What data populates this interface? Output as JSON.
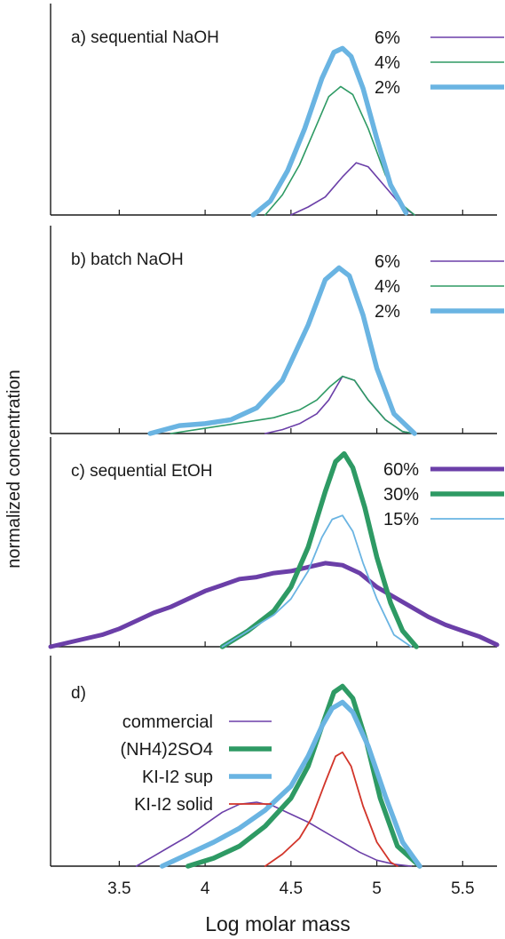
{
  "figure": {
    "xlabel": "Log molar mass",
    "ylabel": "normalized concentration"
  },
  "colors": {
    "purple": "#6b3fa8",
    "green": "#2e9a64",
    "lightblue": "#6ab4e2",
    "red": "#d2352a",
    "axis": "#1a1a1a"
  },
  "chart_data": [
    {
      "type": "line",
      "title": "a) sequential NaOH",
      "xlim": [
        3.1,
        5.7
      ],
      "xticks": [
        3.5,
        4,
        4.5,
        5,
        5.5
      ],
      "ylim": [
        0,
        1
      ],
      "series": [
        {
          "name": "6%",
          "color": "#6b3fa8",
          "width": 1.6,
          "x": [
            4.5,
            4.6,
            4.7,
            4.8,
            4.88,
            4.95,
            5.05,
            5.15,
            5.22
          ],
          "y": [
            0.0,
            0.04,
            0.09,
            0.19,
            0.26,
            0.24,
            0.14,
            0.04,
            0.0
          ]
        },
        {
          "name": "4%",
          "color": "#2e9a64",
          "width": 1.6,
          "x": [
            4.35,
            4.45,
            4.55,
            4.65,
            4.72,
            4.79,
            4.86,
            4.95,
            5.05,
            5.15,
            5.22
          ],
          "y": [
            0.0,
            0.1,
            0.25,
            0.45,
            0.59,
            0.64,
            0.6,
            0.43,
            0.2,
            0.05,
            0.0
          ]
        },
        {
          "name": "2%",
          "color": "#6ab4e2",
          "width": 5.5,
          "x": [
            4.28,
            4.38,
            4.48,
            4.58,
            4.68,
            4.75,
            4.8,
            4.85,
            4.92,
            5.0,
            5.08,
            5.17
          ],
          "y": [
            0.0,
            0.07,
            0.22,
            0.43,
            0.68,
            0.81,
            0.83,
            0.79,
            0.63,
            0.38,
            0.15,
            0.01
          ]
        }
      ]
    },
    {
      "type": "line",
      "title": "b) batch NaOH",
      "xlim": [
        3.1,
        5.7
      ],
      "xticks": [
        3.5,
        4,
        4.5,
        5,
        5.5
      ],
      "ylim": [
        0,
        1
      ],
      "series": [
        {
          "name": "6%",
          "color": "#6b3fa8",
          "width": 1.6,
          "x": [
            4.35,
            4.45,
            4.55,
            4.65,
            4.72,
            4.8,
            4.87,
            4.95,
            5.05,
            5.15,
            5.22
          ],
          "y": [
            0.0,
            0.02,
            0.05,
            0.1,
            0.17,
            0.29,
            0.27,
            0.17,
            0.07,
            0.01,
            0.0
          ]
        },
        {
          "name": "4%",
          "color": "#2e9a64",
          "width": 1.6,
          "x": [
            3.8,
            3.95,
            4.1,
            4.25,
            4.4,
            4.55,
            4.65,
            4.73,
            4.8,
            4.87,
            4.95,
            5.05,
            5.15,
            5.22
          ],
          "y": [
            0.0,
            0.02,
            0.04,
            0.06,
            0.08,
            0.12,
            0.17,
            0.24,
            0.29,
            0.27,
            0.17,
            0.07,
            0.01,
            0.0
          ]
        },
        {
          "name": "2%",
          "color": "#6ab4e2",
          "width": 5.5,
          "x": [
            3.68,
            3.85,
            4.0,
            4.15,
            4.3,
            4.45,
            4.6,
            4.7,
            4.78,
            4.84,
            4.92,
            5.0,
            5.1,
            5.22
          ],
          "y": [
            0.0,
            0.04,
            0.05,
            0.07,
            0.13,
            0.27,
            0.55,
            0.78,
            0.84,
            0.8,
            0.6,
            0.33,
            0.1,
            0.0
          ]
        }
      ]
    },
    {
      "type": "line",
      "title": "c) sequential EtOH",
      "xlim": [
        3.1,
        5.7
      ],
      "xticks": [
        3.5,
        4,
        4.5,
        5,
        5.5
      ],
      "ylim": [
        0,
        1
      ],
      "series": [
        {
          "name": "60%",
          "color": "#6b3fa8",
          "width": 5.0,
          "x": [
            3.1,
            3.2,
            3.3,
            3.4,
            3.5,
            3.6,
            3.7,
            3.8,
            3.9,
            4.0,
            4.1,
            4.2,
            4.3,
            4.4,
            4.5,
            4.6,
            4.7,
            4.8,
            4.9,
            5.0,
            5.1,
            5.2,
            5.3,
            5.4,
            5.5,
            5.6,
            5.7
          ],
          "y": [
            0.0,
            0.02,
            0.04,
            0.06,
            0.09,
            0.13,
            0.17,
            0.2,
            0.24,
            0.28,
            0.31,
            0.34,
            0.35,
            0.37,
            0.38,
            0.4,
            0.42,
            0.41,
            0.37,
            0.3,
            0.25,
            0.2,
            0.15,
            0.11,
            0.08,
            0.05,
            0.01
          ]
        },
        {
          "name": "30%",
          "color": "#2e9a64",
          "width": 5.5,
          "x": [
            4.1,
            4.25,
            4.4,
            4.5,
            4.6,
            4.7,
            4.76,
            4.81,
            4.86,
            4.93,
            5.0,
            5.08,
            5.15,
            5.23
          ],
          "y": [
            0.0,
            0.08,
            0.18,
            0.3,
            0.5,
            0.78,
            0.93,
            0.97,
            0.9,
            0.7,
            0.45,
            0.22,
            0.08,
            0.0
          ]
        },
        {
          "name": "15%",
          "color": "#6ab4e2",
          "width": 1.8,
          "x": [
            4.1,
            4.25,
            4.4,
            4.5,
            4.6,
            4.68,
            4.74,
            4.8,
            4.86,
            4.92,
            5.0,
            5.1,
            5.2
          ],
          "y": [
            0.0,
            0.08,
            0.16,
            0.24,
            0.38,
            0.55,
            0.64,
            0.66,
            0.58,
            0.42,
            0.24,
            0.06,
            0.0
          ]
        }
      ]
    },
    {
      "type": "line",
      "title": "d)",
      "xlim": [
        3.1,
        5.7
      ],
      "xticks": [
        3.5,
        4,
        4.5,
        5,
        5.5
      ],
      "ylim": [
        0,
        1
      ],
      "series": [
        {
          "name": "commercial",
          "color": "#6b3fa8",
          "width": 1.6,
          "x": [
            3.6,
            3.7,
            3.8,
            3.9,
            4.0,
            4.1,
            4.2,
            4.3,
            4.4,
            4.5,
            4.6,
            4.7,
            4.8,
            4.9,
            5.0,
            5.1,
            5.2
          ],
          "y": [
            0.0,
            0.05,
            0.1,
            0.15,
            0.21,
            0.27,
            0.31,
            0.32,
            0.3,
            0.26,
            0.22,
            0.17,
            0.12,
            0.07,
            0.03,
            0.01,
            0.0
          ]
        },
        {
          "name": "(NH4)2SO4",
          "color": "#2e9a64",
          "width": 5.5,
          "x": [
            3.9,
            4.05,
            4.2,
            4.35,
            4.5,
            4.6,
            4.68,
            4.75,
            4.8,
            4.86,
            4.94,
            5.02,
            5.12,
            5.25
          ],
          "y": [
            0.0,
            0.04,
            0.1,
            0.2,
            0.34,
            0.5,
            0.7,
            0.87,
            0.9,
            0.84,
            0.62,
            0.34,
            0.1,
            0.0
          ]
        },
        {
          "name": "KI-I2 sup",
          "color": "#6ab4e2",
          "width": 5.5,
          "x": [
            3.75,
            3.9,
            4.05,
            4.2,
            4.35,
            4.5,
            4.6,
            4.68,
            4.74,
            4.8,
            4.86,
            4.95,
            5.05,
            5.15,
            5.25
          ],
          "y": [
            0.0,
            0.06,
            0.12,
            0.19,
            0.28,
            0.4,
            0.55,
            0.7,
            0.79,
            0.82,
            0.77,
            0.6,
            0.35,
            0.12,
            0.0
          ]
        },
        {
          "name": "KI-I2 solid",
          "color": "#d2352a",
          "width": 1.8,
          "x": [
            4.35,
            4.45,
            4.55,
            4.62,
            4.7,
            4.76,
            4.8,
            4.85,
            4.92,
            5.0,
            5.08,
            5.12
          ],
          "y": [
            0.0,
            0.06,
            0.14,
            0.24,
            0.42,
            0.55,
            0.57,
            0.5,
            0.3,
            0.12,
            0.02,
            0.0
          ]
        }
      ]
    }
  ]
}
